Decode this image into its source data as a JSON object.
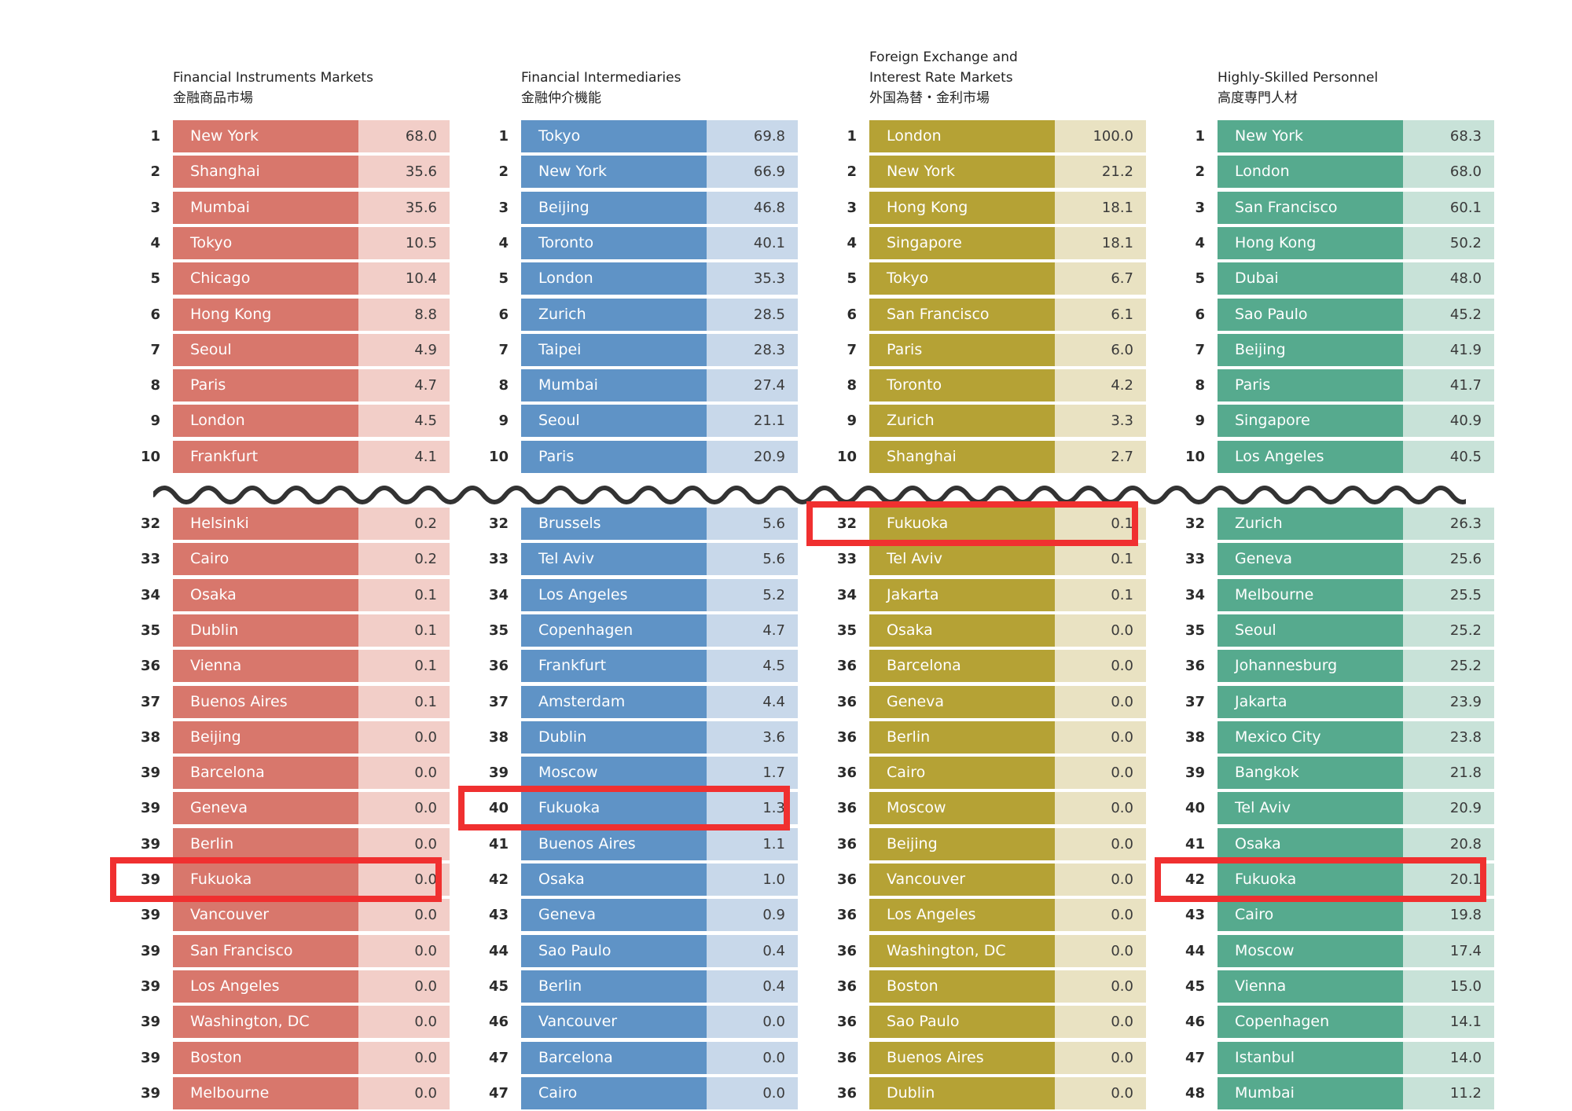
{
  "chart_data": [
    {
      "type": "table",
      "title": "Financial Instruments Markets",
      "subtitle": "金融商品市場",
      "colors": {
        "city": "#d8776c",
        "value": "#f2cec8"
      },
      "top": [
        {
          "rank": "1",
          "city": "New York",
          "value": "68.0"
        },
        {
          "rank": "2",
          "city": "Shanghai",
          "value": "35.6"
        },
        {
          "rank": "3",
          "city": "Mumbai",
          "value": "35.6"
        },
        {
          "rank": "4",
          "city": "Tokyo",
          "value": "10.5"
        },
        {
          "rank": "5",
          "city": "Chicago",
          "value": "10.4"
        },
        {
          "rank": "6",
          "city": "Hong Kong",
          "value": "8.8"
        },
        {
          "rank": "7",
          "city": "Seoul",
          "value": "4.9"
        },
        {
          "rank": "8",
          "city": "Paris",
          "value": "4.7"
        },
        {
          "rank": "9",
          "city": "London",
          "value": "4.5"
        },
        {
          "rank": "10",
          "city": "Frankfurt",
          "value": "4.1"
        }
      ],
      "bottom": [
        {
          "rank": "32",
          "city": "Helsinki",
          "value": "0.2"
        },
        {
          "rank": "33",
          "city": "Cairo",
          "value": "0.2"
        },
        {
          "rank": "34",
          "city": "Osaka",
          "value": "0.1"
        },
        {
          "rank": "35",
          "city": "Dublin",
          "value": "0.1"
        },
        {
          "rank": "36",
          "city": "Vienna",
          "value": "0.1"
        },
        {
          "rank": "37",
          "city": "Buenos Aires",
          "value": "0.1"
        },
        {
          "rank": "38",
          "city": "Beijing",
          "value": "0.0"
        },
        {
          "rank": "39",
          "city": "Barcelona",
          "value": "0.0"
        },
        {
          "rank": "39",
          "city": "Geneva",
          "value": "0.0"
        },
        {
          "rank": "39",
          "city": "Berlin",
          "value": "0.0"
        },
        {
          "rank": "39",
          "city": "Fukuoka",
          "value": "0.0",
          "highlight": true
        },
        {
          "rank": "39",
          "city": "Vancouver",
          "value": "0.0"
        },
        {
          "rank": "39",
          "city": "San Francisco",
          "value": "0.0"
        },
        {
          "rank": "39",
          "city": "Los Angeles",
          "value": "0.0"
        },
        {
          "rank": "39",
          "city": "Washington, DC",
          "value": "0.0"
        },
        {
          "rank": "39",
          "city": "Boston",
          "value": "0.0"
        },
        {
          "rank": "39",
          "city": "Melbourne",
          "value": "0.0"
        }
      ]
    },
    {
      "type": "table",
      "title": "Financial Intermediaries",
      "subtitle": "金融仲介機能",
      "colors": {
        "city": "#5f93c6",
        "value": "#c8d8ea"
      },
      "top": [
        {
          "rank": "1",
          "city": "Tokyo",
          "value": "69.8"
        },
        {
          "rank": "2",
          "city": "New York",
          "value": "66.9"
        },
        {
          "rank": "3",
          "city": "Beijing",
          "value": "46.8"
        },
        {
          "rank": "4",
          "city": "Toronto",
          "value": "40.1"
        },
        {
          "rank": "5",
          "city": "London",
          "value": "35.3"
        },
        {
          "rank": "6",
          "city": "Zurich",
          "value": "28.5"
        },
        {
          "rank": "7",
          "city": "Taipei",
          "value": "28.3"
        },
        {
          "rank": "8",
          "city": "Mumbai",
          "value": "27.4"
        },
        {
          "rank": "9",
          "city": "Seoul",
          "value": "21.1"
        },
        {
          "rank": "10",
          "city": "Paris",
          "value": "20.9"
        }
      ],
      "bottom": [
        {
          "rank": "32",
          "city": "Brussels",
          "value": "5.6"
        },
        {
          "rank": "33",
          "city": "Tel Aviv",
          "value": "5.6"
        },
        {
          "rank": "34",
          "city": "Los Angeles",
          "value": "5.2"
        },
        {
          "rank": "35",
          "city": "Copenhagen",
          "value": "4.7"
        },
        {
          "rank": "36",
          "city": "Frankfurt",
          "value": "4.5"
        },
        {
          "rank": "37",
          "city": "Amsterdam",
          "value": "4.4"
        },
        {
          "rank": "38",
          "city": "Dublin",
          "value": "3.6"
        },
        {
          "rank": "39",
          "city": "Moscow",
          "value": "1.7"
        },
        {
          "rank": "40",
          "city": "Fukuoka",
          "value": "1.3",
          "highlight": true
        },
        {
          "rank": "41",
          "city": "Buenos Aires",
          "value": "1.1"
        },
        {
          "rank": "42",
          "city": "Osaka",
          "value": "1.0"
        },
        {
          "rank": "43",
          "city": "Geneva",
          "value": "0.9"
        },
        {
          "rank": "44",
          "city": "Sao Paulo",
          "value": "0.4"
        },
        {
          "rank": "45",
          "city": "Berlin",
          "value": "0.4"
        },
        {
          "rank": "46",
          "city": "Vancouver",
          "value": "0.0"
        },
        {
          "rank": "47",
          "city": "Barcelona",
          "value": "0.0"
        },
        {
          "rank": "47",
          "city": "Cairo",
          "value": "0.0"
        }
      ]
    },
    {
      "type": "table",
      "title": "Foreign Exchange and Interest Rate Markets",
      "subtitle": "外国為替・金利市場",
      "colors": {
        "city": "#b5a235",
        "value": "#e9e2c2"
      },
      "top": [
        {
          "rank": "1",
          "city": "London",
          "value": "100.0"
        },
        {
          "rank": "2",
          "city": "New York",
          "value": "21.2"
        },
        {
          "rank": "3",
          "city": "Hong Kong",
          "value": "18.1"
        },
        {
          "rank": "4",
          "city": "Singapore",
          "value": "18.1"
        },
        {
          "rank": "5",
          "city": "Tokyo",
          "value": "6.7"
        },
        {
          "rank": "6",
          "city": "San Francisco",
          "value": "6.1"
        },
        {
          "rank": "7",
          "city": "Paris",
          "value": "6.0"
        },
        {
          "rank": "8",
          "city": "Toronto",
          "value": "4.2"
        },
        {
          "rank": "9",
          "city": "Zurich",
          "value": "3.3"
        },
        {
          "rank": "10",
          "city": "Shanghai",
          "value": "2.7"
        }
      ],
      "bottom": [
        {
          "rank": "32",
          "city": "Fukuoka",
          "value": "0.1",
          "highlight": true
        },
        {
          "rank": "33",
          "city": "Tel Aviv",
          "value": "0.1"
        },
        {
          "rank": "34",
          "city": "Jakarta",
          "value": "0.1"
        },
        {
          "rank": "35",
          "city": "Osaka",
          "value": "0.0"
        },
        {
          "rank": "36",
          "city": "Barcelona",
          "value": "0.0"
        },
        {
          "rank": "36",
          "city": "Geneva",
          "value": "0.0"
        },
        {
          "rank": "36",
          "city": "Berlin",
          "value": "0.0"
        },
        {
          "rank": "36",
          "city": "Cairo",
          "value": "0.0"
        },
        {
          "rank": "36",
          "city": "Moscow",
          "value": "0.0"
        },
        {
          "rank": "36",
          "city": "Beijing",
          "value": "0.0"
        },
        {
          "rank": "36",
          "city": "Vancouver",
          "value": "0.0"
        },
        {
          "rank": "36",
          "city": "Los Angeles",
          "value": "0.0"
        },
        {
          "rank": "36",
          "city": "Washington, DC",
          "value": "0.0"
        },
        {
          "rank": "36",
          "city": "Boston",
          "value": "0.0"
        },
        {
          "rank": "36",
          "city": "Sao Paulo",
          "value": "0.0"
        },
        {
          "rank": "36",
          "city": "Buenos Aires",
          "value": "0.0"
        },
        {
          "rank": "36",
          "city": "Dublin",
          "value": "0.0"
        }
      ]
    },
    {
      "type": "table",
      "title": "Highly-Skilled Personnel",
      "subtitle": "高度専門人材",
      "colors": {
        "city": "#56aa8e",
        "value": "#c8e2d8"
      },
      "top": [
        {
          "rank": "1",
          "city": "New York",
          "value": "68.3"
        },
        {
          "rank": "2",
          "city": "London",
          "value": "68.0"
        },
        {
          "rank": "3",
          "city": "San Francisco",
          "value": "60.1"
        },
        {
          "rank": "4",
          "city": "Hong Kong",
          "value": "50.2"
        },
        {
          "rank": "5",
          "city": "Dubai",
          "value": "48.0"
        },
        {
          "rank": "6",
          "city": "Sao Paulo",
          "value": "45.2"
        },
        {
          "rank": "7",
          "city": "Beijing",
          "value": "41.9"
        },
        {
          "rank": "8",
          "city": "Paris",
          "value": "41.7"
        },
        {
          "rank": "9",
          "city": "Singapore",
          "value": "40.9"
        },
        {
          "rank": "10",
          "city": "Los Angeles",
          "value": "40.5"
        }
      ],
      "bottom": [
        {
          "rank": "32",
          "city": "Zurich",
          "value": "26.3"
        },
        {
          "rank": "33",
          "city": "Geneva",
          "value": "25.6"
        },
        {
          "rank": "34",
          "city": "Melbourne",
          "value": "25.5"
        },
        {
          "rank": "35",
          "city": "Seoul",
          "value": "25.2"
        },
        {
          "rank": "36",
          "city": "Johannesburg",
          "value": "25.2"
        },
        {
          "rank": "37",
          "city": "Jakarta",
          "value": "23.9"
        },
        {
          "rank": "38",
          "city": "Mexico City",
          "value": "23.8"
        },
        {
          "rank": "39",
          "city": "Bangkok",
          "value": "21.8"
        },
        {
          "rank": "40",
          "city": "Tel Aviv",
          "value": "20.9"
        },
        {
          "rank": "41",
          "city": "Osaka",
          "value": "20.8"
        },
        {
          "rank": "42",
          "city": "Fukuoka",
          "value": "20.1",
          "highlight": true
        },
        {
          "rank": "43",
          "city": "Cairo",
          "value": "19.8"
        },
        {
          "rank": "44",
          "city": "Moscow",
          "value": "17.4"
        },
        {
          "rank": "45",
          "city": "Vienna",
          "value": "15.0"
        },
        {
          "rank": "46",
          "city": "Copenhagen",
          "value": "14.1"
        },
        {
          "rank": "47",
          "city": "Istanbul",
          "value": "14.0"
        },
        {
          "rank": "48",
          "city": "Mumbai",
          "value": "11.2"
        }
      ]
    }
  ],
  "highlight_color": "#f03030"
}
